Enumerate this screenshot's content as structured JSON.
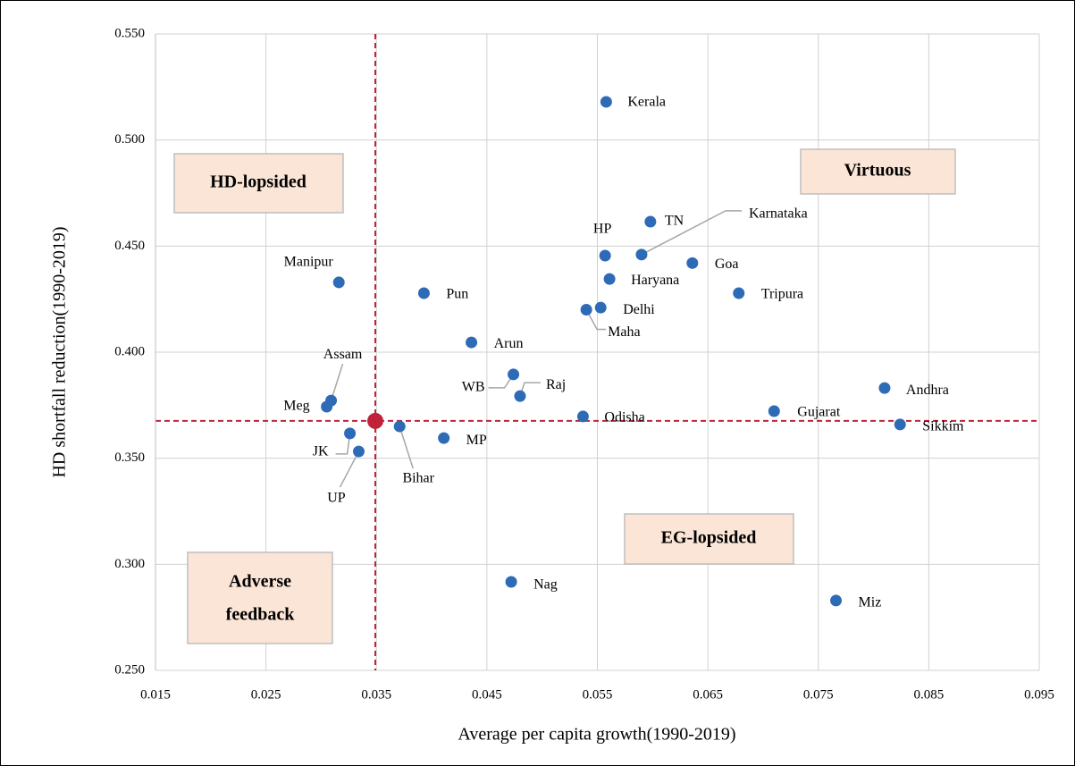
{
  "chart_data": {
    "type": "scatter",
    "xlabel": "Average per capita growth(1990-2019)",
    "ylabel": "HD shortfall reduction(1990-2019)",
    "quadrant_labels": {
      "top_left": "HD-lopsided",
      "top_right": "Virtuous",
      "bottom_right": "EG-lopsided",
      "bottom_left": [
        "Adverse",
        "feedback"
      ]
    },
    "point_labels": [
      "Kerala",
      "TN",
      "Karnataka",
      "HP",
      "Goa",
      "Haryana",
      "Tripura",
      "Delhi",
      "Maha",
      "Manipur",
      "Pun",
      "Arun",
      "WB",
      "Raj",
      "Odisha",
      "Andhra",
      "Gujarat",
      "Sikkim",
      "Assam",
      "Meg",
      "JK",
      "UP",
      "Bihar",
      "MP",
      "Nag",
      "Miz"
    ],
    "x": [
      0.0558,
      0.0598,
      0.059,
      0.0557,
      0.0636,
      0.0561,
      0.0678,
      0.0553,
      0.054,
      0.0316,
      0.0393,
      0.0436,
      0.0474,
      0.048,
      0.0537,
      0.081,
      0.071,
      0.0824,
      0.0309,
      0.0305,
      0.0326,
      0.0334,
      0.0371,
      0.0411,
      0.0472,
      0.0766
    ],
    "series": [
      {
        "color": "#2e6bb7",
        "values": [
          0.518,
          0.4615,
          0.446,
          0.4455,
          0.442,
          0.4345,
          0.4278,
          0.421,
          0.42,
          0.4329,
          0.4278,
          0.4046,
          0.3895,
          0.3793,
          0.3697,
          0.3831,
          0.3722,
          0.3659,
          0.3772,
          0.3743,
          0.3617,
          0.3532,
          0.365,
          0.3595,
          0.2917,
          0.2829
        ]
      }
    ],
    "reference": {
      "x": 0.0349,
      "y": 0.3676,
      "color": "#c0223a"
    },
    "xlim": [
      0.015,
      0.095
    ],
    "xticks": [
      0.015,
      0.025,
      0.035,
      0.045,
      0.055,
      0.065,
      0.075,
      0.085,
      0.095
    ],
    "ylim": [
      0.25,
      0.55
    ],
    "yticks": [
      {
        "value": 0.25,
        "label": "0.250"
      },
      {
        "value": 0.3,
        "label": "0.300"
      },
      {
        "value": 0.35,
        "label": "0.350"
      },
      {
        "value": 0.4,
        "label": "0.400"
      },
      {
        "value": 0.45,
        "label": "0.450"
      },
      {
        "value": 0.5,
        "label": "0.500"
      },
      {
        "value": 0.55,
        "label": "0.550"
      }
    ],
    "grid": true
  }
}
